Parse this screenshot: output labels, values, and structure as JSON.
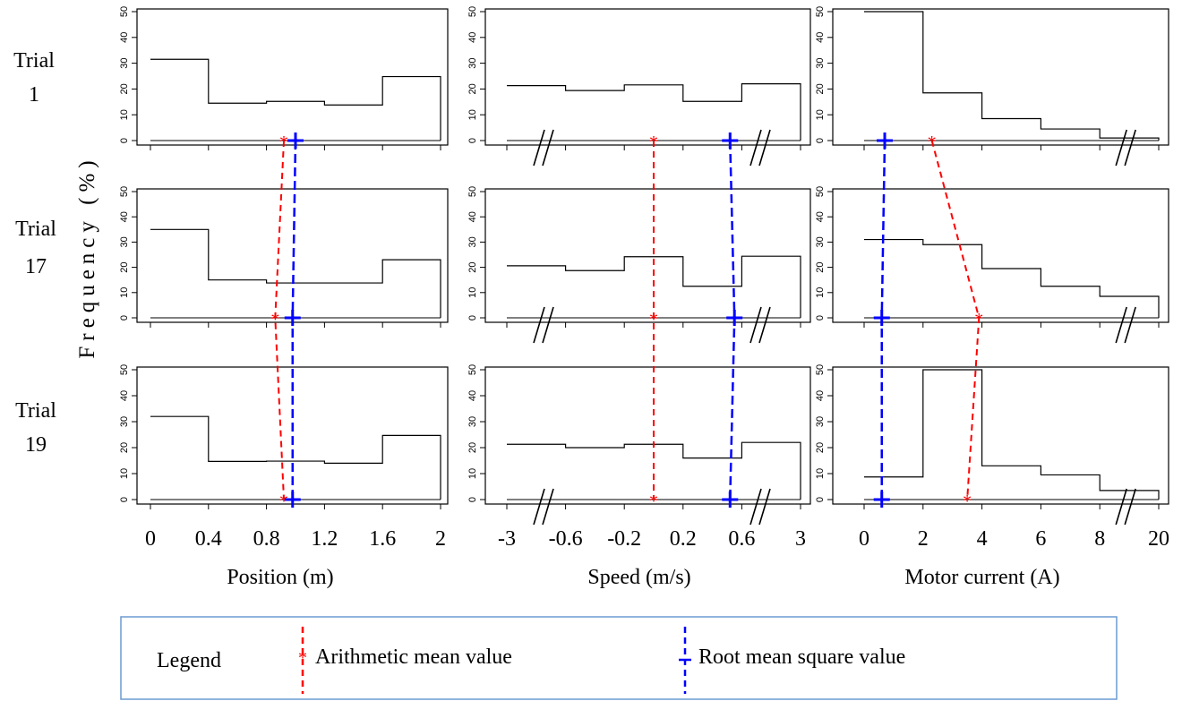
{
  "figure": {
    "ylabel": "Frequency (%)",
    "rows": [
      {
        "label_line1": "Trial",
        "label_line2": "1"
      },
      {
        "label_line1": "Trial",
        "label_line2": "17"
      },
      {
        "label_line1": "Trial",
        "label_line2": "19"
      }
    ],
    "columns": [
      {
        "xlabel": "Position (m)",
        "tick_labels": [
          "0",
          "0.4",
          "0.8",
          "1.2",
          "1.6",
          "2"
        ]
      },
      {
        "xlabel": "Speed (m/s)",
        "tick_labels": [
          "-3",
          "-0.6",
          "-0.2",
          "0.2",
          "0.6",
          "3"
        ]
      },
      {
        "xlabel": "Motor current (A)",
        "tick_labels": [
          "0",
          "2",
          "4",
          "6",
          "8",
          "20"
        ]
      }
    ],
    "y_tick_labels": [
      "0",
      "10",
      "20",
      "30",
      "40",
      "50"
    ],
    "legend": {
      "title": "Legend",
      "mean_label": "Arithmetic mean value",
      "rms_label": "Root mean square value",
      "border_color": "#6b9bd2"
    },
    "colors": {
      "mean": "#ff0000",
      "rms": "#0000ff",
      "histogram": "#000000"
    }
  },
  "chart_data": {
    "type": "step-histogram-grid",
    "ylim": [
      0,
      50
    ],
    "axis_break_markers": "// on speed axis near both ends, // on current axis between 8 and 20",
    "panels": [
      {
        "row": "Trial 1",
        "column": "Position (m)",
        "bins": [
          "0-0.4",
          "0.4-0.8",
          "0.8-1.2",
          "1.2-1.6",
          "1.6-2"
        ],
        "values": [
          31.5,
          14.5,
          15.2,
          13.8,
          24.8
        ],
        "mean": 0.92,
        "rms": 1.0
      },
      {
        "row": "Trial 1",
        "column": "Speed (m/s)",
        "bins": [
          "-3 to -0.6",
          "-0.6 to -0.2",
          "-0.2 to 0.2",
          "0.2 to 0.6",
          "0.6 to 3"
        ],
        "values": [
          21.3,
          19.4,
          21.6,
          15.2,
          22.0
        ],
        "mean": 0.0,
        "rms": 0.52
      },
      {
        "row": "Trial 1",
        "column": "Motor current (A)",
        "bins": [
          "0-2",
          "2-4",
          "4-6",
          "6-8",
          "8-20"
        ],
        "values": [
          53,
          18.5,
          8.5,
          4.5,
          1.0
        ],
        "mean": 2.3,
        "rms": 0.7
      },
      {
        "row": "Trial 17",
        "column": "Position (m)",
        "bins": [
          "0-0.4",
          "0.4-0.8",
          "0.8-1.2",
          "1.2-1.6",
          "1.6-2"
        ],
        "values": [
          35.0,
          15.0,
          13.8,
          13.8,
          23.0
        ],
        "mean": 0.86,
        "rms": 0.98
      },
      {
        "row": "Trial 17",
        "column": "Speed (m/s)",
        "bins": [
          "-3 to -0.6",
          "-0.6 to -0.2",
          "-0.2 to 0.2",
          "0.2 to 0.6",
          "0.6 to 3"
        ],
        "values": [
          20.6,
          18.7,
          24.2,
          12.5,
          24.4
        ],
        "mean": 0.0,
        "rms": 0.55
      },
      {
        "row": "Trial 17",
        "column": "Motor current (A)",
        "bins": [
          "0-2",
          "2-4",
          "4-6",
          "6-8",
          "8-20"
        ],
        "values": [
          31.0,
          29.0,
          19.5,
          12.5,
          8.5
        ],
        "mean": 3.9,
        "rms": 0.6
      },
      {
        "row": "Trial 19",
        "column": "Position (m)",
        "bins": [
          "0-0.4",
          "0.4-0.8",
          "0.8-1.2",
          "1.2-1.6",
          "1.6-2"
        ],
        "values": [
          32.0,
          14.7,
          14.8,
          14.0,
          24.7
        ],
        "mean": 0.92,
        "rms": 0.98
      },
      {
        "row": "Trial 19",
        "column": "Speed (m/s)",
        "bins": [
          "-3 to -0.6",
          "-0.6 to -0.2",
          "-0.2 to 0.2",
          "0.2 to 0.6",
          "0.6 to 3"
        ],
        "values": [
          21.3,
          20.0,
          21.3,
          16.0,
          22.0
        ],
        "mean": 0.0,
        "rms": 0.52
      },
      {
        "row": "Trial 19",
        "column": "Motor current (A)",
        "bins": [
          "0-2",
          "2-4",
          "4-6",
          "6-8",
          "8-20"
        ],
        "values": [
          8.7,
          53,
          13.0,
          9.5,
          3.5
        ],
        "mean": 3.5,
        "rms": 0.6
      }
    ]
  }
}
